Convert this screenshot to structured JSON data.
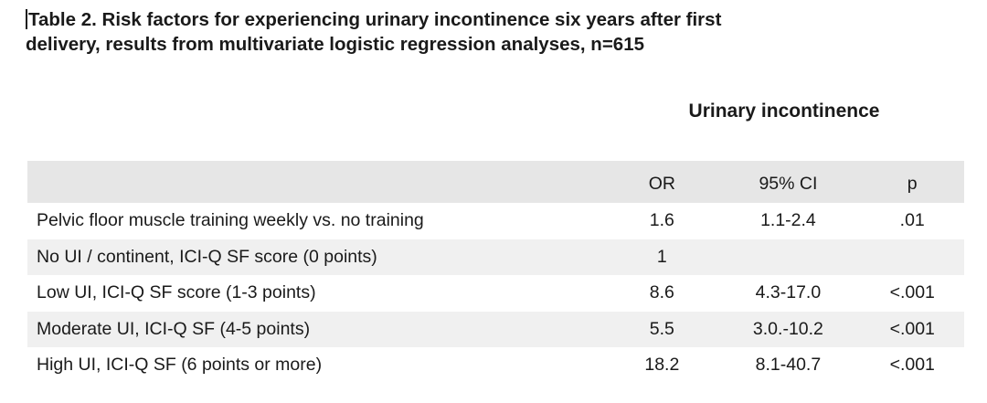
{
  "caption": {
    "line1": "Table 2. Risk factors for experiencing urinary incontinence six years after first",
    "line2": "delivery, results from multivariate logistic regression analyses, n=615"
  },
  "group_header": "Urinary incontinence",
  "columns": {
    "factor": "",
    "or": "OR",
    "ci": "95% CI",
    "p": "p"
  },
  "rows": [
    {
      "factor": "Pelvic floor muscle training weekly vs. no training",
      "or": "1.6",
      "ci": "1.1-2.4",
      "p": ".01"
    },
    {
      "factor": "No UI / continent,  ICI-Q SF score (0 points)",
      "or": "1",
      "ci": "",
      "p": ""
    },
    {
      "factor": "Low UI, ICI-Q SF score (1-3 points)",
      "or": "8.6",
      "ci": "4.3-17.0",
      "p": "<.001"
    },
    {
      "factor": "Moderate UI, ICI-Q SF (4-5 points)",
      "or": "5.5",
      "ci": "3.0.-10.2",
      "p": "<.001"
    },
    {
      "factor": "High UI, ICI-Q SF (6 points or more)",
      "or": "18.2",
      "ci": "8.1-40.7",
      "p": "<.001"
    }
  ]
}
